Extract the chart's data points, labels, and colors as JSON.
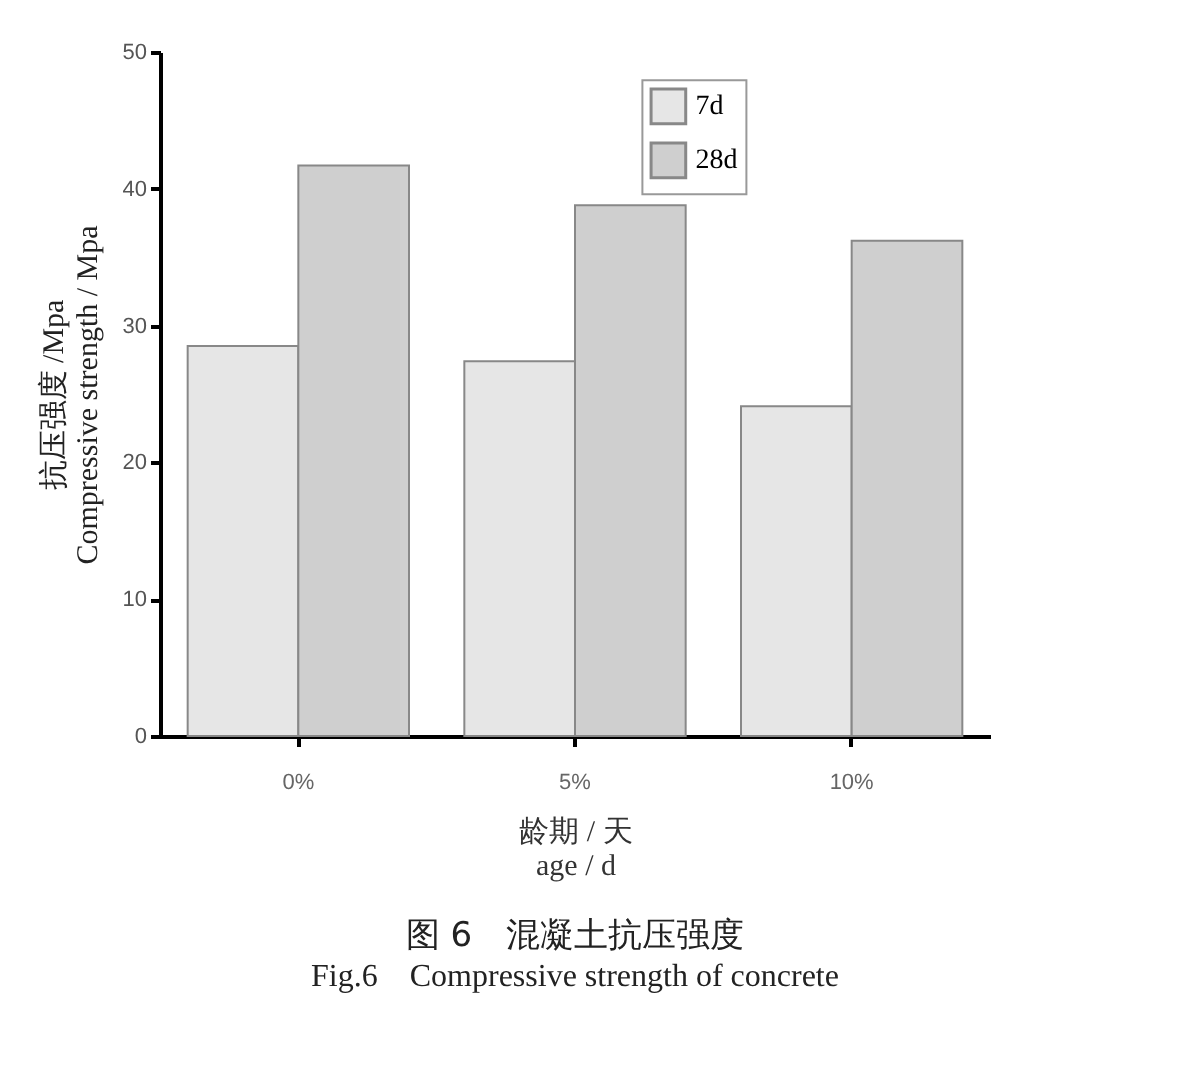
{
  "chart_data": {
    "type": "bar",
    "title": "图 6　混凝土抗压强度",
    "subtitle": "Fig.6　Compressive strength of concrete",
    "xlabel": "龄期 / 天\nage / d",
    "ylabel": "抗压强度 /Mpa\nCompressive strength / Mpa",
    "categories": [
      "0%",
      "5%",
      "10%"
    ],
    "series": [
      {
        "name": "7d",
        "color": "#e6e6e6",
        "values": [
          28.5,
          27.4,
          24.1
        ]
      },
      {
        "name": "28d",
        "color": "#cfcfcf",
        "values": [
          41.7,
          38.8,
          36.2
        ]
      }
    ],
    "ylim": [
      0,
      50
    ],
    "yticks": [
      0,
      10,
      20,
      30,
      40,
      50
    ],
    "grid": false,
    "legend": "top right"
  }
}
